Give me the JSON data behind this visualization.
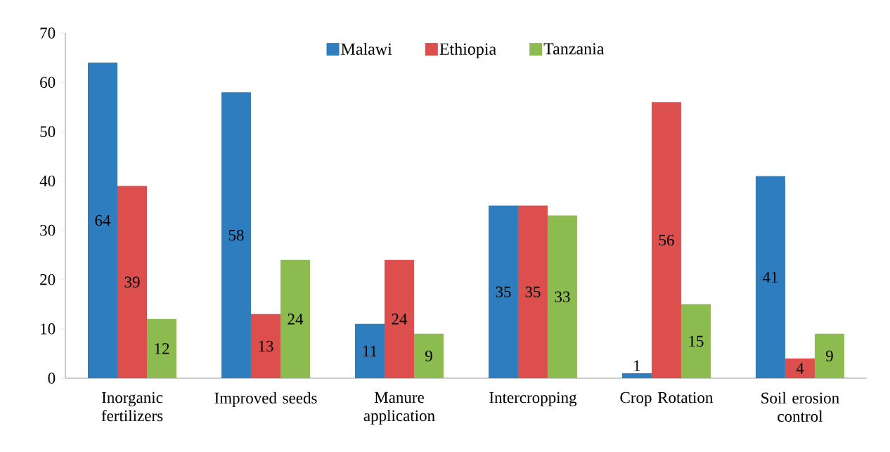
{
  "chart_data": {
    "type": "bar",
    "categories": [
      "Inorganic fertilizers",
      "Improved seeds",
      "Manure application",
      "Intercropping",
      "Crop Rotation",
      "Soil erosion control"
    ],
    "series": [
      {
        "name": "Malawi",
        "color": "#2e7ebf",
        "values": [
          64,
          58,
          11,
          35,
          1,
          41
        ]
      },
      {
        "name": "Ethiopia",
        "color": "#dc4f4d",
        "values": [
          39,
          13,
          24,
          35,
          56,
          4
        ]
      },
      {
        "name": "Tanzania",
        "color": "#8cbb4f",
        "values": [
          12,
          24,
          9,
          33,
          15,
          9
        ]
      }
    ],
    "ylim": [
      0,
      70
    ],
    "yticks": [
      0,
      10,
      20,
      30,
      40,
      50,
      60,
      70
    ],
    "legend": "top",
    "data_labels": true
  }
}
